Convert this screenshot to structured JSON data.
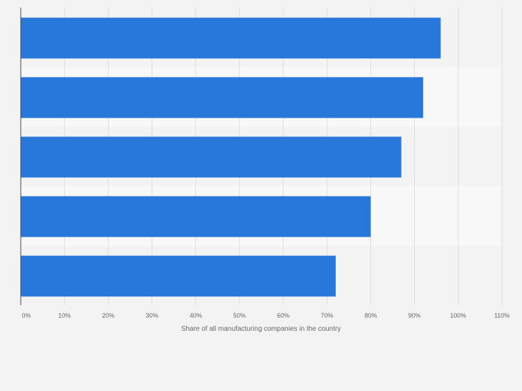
{
  "chart_data": {
    "type": "bar",
    "orientation": "horizontal",
    "categories": [
      "",
      "",
      "",
      "",
      ""
    ],
    "series": [
      {
        "values": [
          96,
          92,
          87,
          80,
          72
        ]
      }
    ],
    "xlabel": "Share of all manufacturing companies in the country",
    "ylabel": "",
    "xlim": [
      0,
      110
    ],
    "x_ticks": [
      0,
      10,
      20,
      30,
      40,
      50,
      60,
      70,
      80,
      90,
      100,
      110
    ],
    "x_tick_labels": [
      "0%",
      "10%",
      "20%",
      "30%",
      "40%",
      "50%",
      "60%",
      "70%",
      "80%",
      "90%",
      "100%",
      "110%"
    ],
    "grid": true,
    "bar_color": "#2878dc",
    "band_colors": [
      "#f3f3f3",
      "#f8f8f8"
    ],
    "gridline_color": "#dcdcdc",
    "axis_color": "#444444",
    "tick_label_color": "#666666"
  }
}
